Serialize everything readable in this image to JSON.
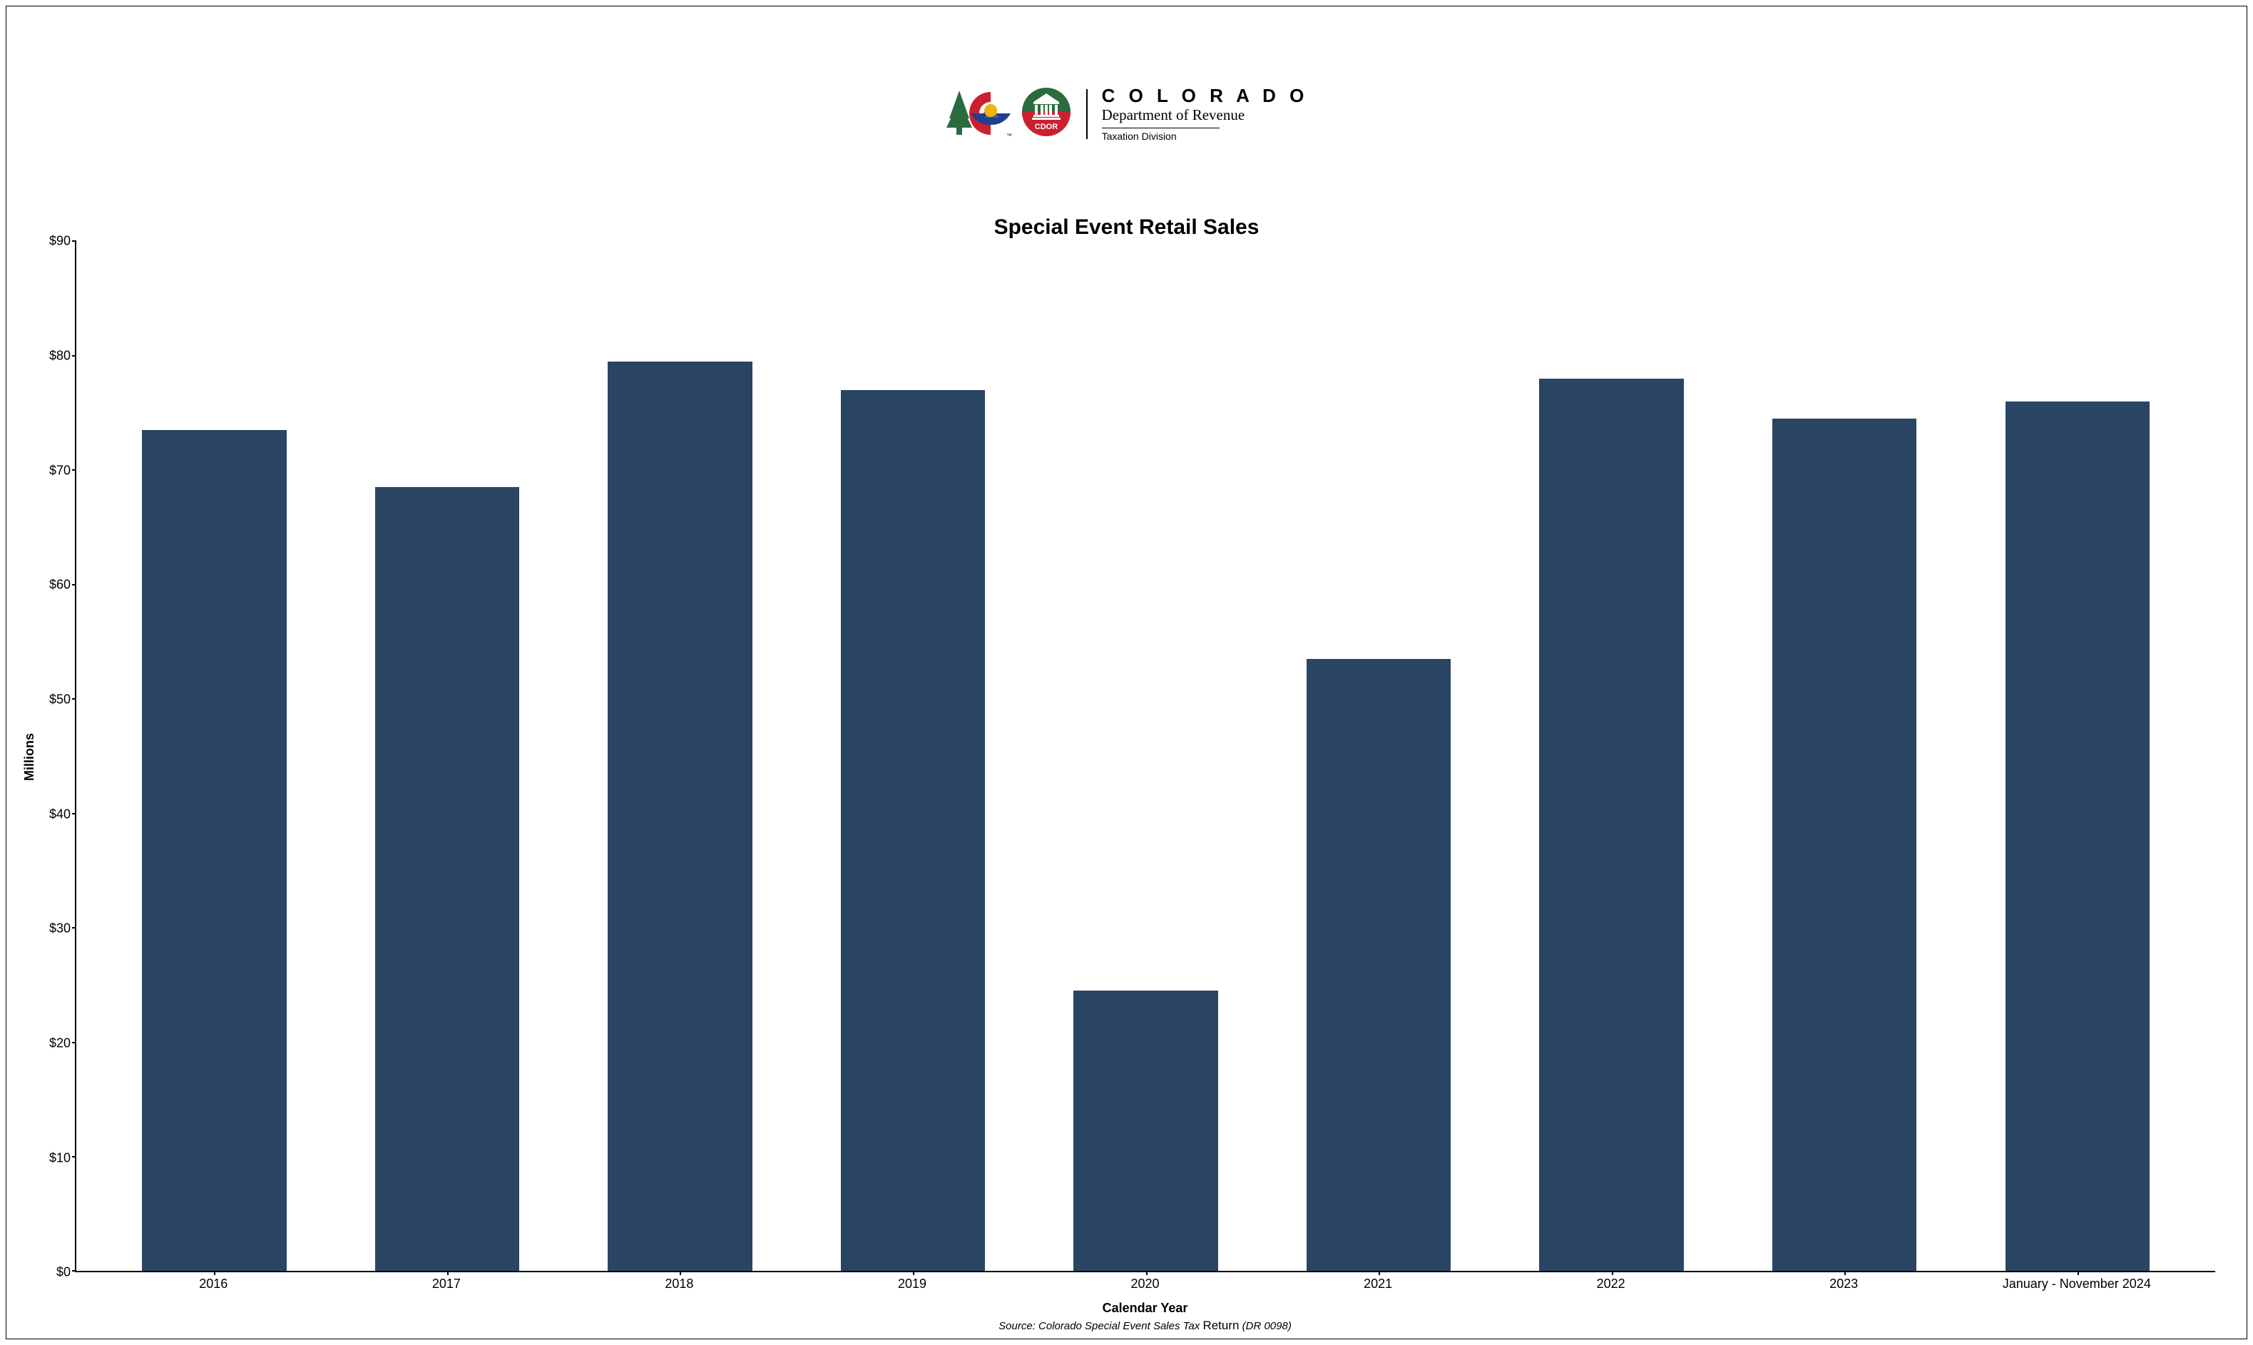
{
  "header": {
    "colorado": "C O L O R A D O",
    "department": "Department of Revenue",
    "division": "Taxation Division",
    "cdor_label": "CDOR",
    "tm": "™",
    "logo_colors": {
      "tree": "#2a6b3f",
      "c_red": "#cc2030",
      "c_blue": "#1f3f8f",
      "sun": "#f0b400",
      "badge_green": "#2a6b3f",
      "badge_red": "#cc2030",
      "badge_white": "#ffffff"
    }
  },
  "chart": {
    "type": "bar",
    "title": "Special Event Retail Sales",
    "ylabel": "Millions",
    "xlabel": "Calendar Year",
    "source_prefix": "Source: Colorado Special Event Sales Tax ",
    "source_return": "Return",
    "source_suffix": " (DR 0098)",
    "ylim": [
      0,
      90
    ],
    "ytick_step": 10,
    "ytick_prefix": "$",
    "bar_color": "#2a4464",
    "border_color": "#000000",
    "background_color": "#ffffff",
    "title_fontsize": 30,
    "label_fontsize": 18,
    "tick_fontsize": 18,
    "bar_width": 0.62,
    "categories": [
      "2016",
      "2017",
      "2018",
      "2019",
      "2020",
      "2021",
      "2022",
      "2023",
      "January - November 2024"
    ],
    "values": [
      73.5,
      68.5,
      79.5,
      77.0,
      24.5,
      53.5,
      78.0,
      74.5,
      76.0
    ]
  }
}
